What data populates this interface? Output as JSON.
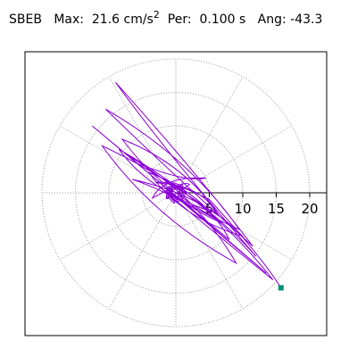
{
  "header": {
    "station": "SBEB",
    "max_label": "Max:",
    "max_value": "21.6 cm/s",
    "max_unit_exp": "2",
    "per_label": "Per:",
    "per_value": "0.100 s",
    "ang_label": "Ang:",
    "ang_value": "-43.3"
  },
  "chart_data": {
    "type": "polar-trajectory",
    "title": "SBEB  Max: 21.6 cm/s2  Per: 0.100 s  Ang: -43.3",
    "radial_ticks": [
      5,
      10,
      15,
      20
    ],
    "radial_tick_labels": [
      "5",
      "10",
      "15",
      "20"
    ],
    "r_max": 20,
    "grid": true,
    "colors": {
      "trace": "#8B00D6",
      "marker": "#008f75",
      "grid": "#999999",
      "axis": "#000000"
    },
    "trace": {
      "description_points_x": [
        -0.5,
        2.0,
        -3.5,
        4.5,
        -6.0,
        6.5,
        -8.0,
        9.5,
        -10.5,
        11.5,
        -9.0,
        12.0,
        -11.0,
        9.0,
        -7.0,
        13.5,
        -12.5,
        8.0,
        -4.0,
        10.0,
        -6.5,
        7.0,
        -2.0,
        14.5,
        -8.5,
        6.0,
        -3.0,
        5.0,
        15.7
      ],
      "description_points_y": [
        0.0,
        1.2,
        -0.8,
        2.2,
        4.5,
        -3.5,
        8.0,
        -5.5,
        12.5,
        -8.0,
        16.5,
        -9.5,
        7.0,
        -10.5,
        5.5,
        -12.0,
        10.0,
        -7.0,
        3.0,
        -6.5,
        2.0,
        -4.5,
        0.5,
        -13.0,
        6.5,
        -3.0,
        1.5,
        -1.0,
        -14.2
      ],
      "final_point": {
        "x": 15.7,
        "y": -14.2
      }
    }
  }
}
